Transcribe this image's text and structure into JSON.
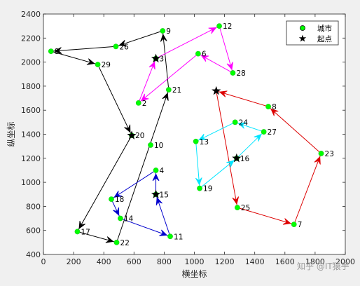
{
  "chart_data": {
    "type": "scatter",
    "xlabel": "横坐标",
    "ylabel": "纵坐标",
    "xlim": [
      0,
      2000
    ],
    "ylim": [
      400,
      2400
    ],
    "xticks": [
      0,
      200,
      400,
      600,
      800,
      1000,
      1200,
      1400,
      1600,
      1800,
      2000
    ],
    "yticks": [
      400,
      600,
      800,
      1000,
      1200,
      1400,
      1600,
      1800,
      2000,
      2200,
      2400
    ],
    "grid": false,
    "legend": {
      "placement": "top-right",
      "entries": [
        {
          "label": "城市",
          "marker": "circle",
          "color": "#00ff00"
        },
        {
          "label": "起点",
          "marker": "star",
          "color": "#000000"
        }
      ]
    },
    "points": [
      {
        "id": "2",
        "x": 630,
        "y": 1660
      },
      {
        "id": "3",
        "x": 745,
        "y": 2030
      },
      {
        "id": "4",
        "x": 745,
        "y": 1100
      },
      {
        "id": "6",
        "x": 1025,
        "y": 2070
      },
      {
        "id": "7",
        "x": 1660,
        "y": 650
      },
      {
        "id": "8",
        "x": 50,
        "y": 2090
      },
      {
        "id": "9",
        "x": 790,
        "y": 2260
      },
      {
        "id": "10",
        "x": 710,
        "y": 1310
      },
      {
        "id": "11",
        "x": 840,
        "y": 550
      },
      {
        "id": "12",
        "x": 1165,
        "y": 2300
      },
      {
        "id": "13",
        "x": 1010,
        "y": 1340
      },
      {
        "id": "14",
        "x": 510,
        "y": 700
      },
      {
        "id": "15",
        "x": 745,
        "y": 900
      },
      {
        "id": "16",
        "x": 1280,
        "y": 1200
      },
      {
        "id": "17",
        "x": 225,
        "y": 590
      },
      {
        "id": "18",
        "x": 450,
        "y": 860
      },
      {
        "id": "19",
        "x": 1035,
        "y": 950
      },
      {
        "id": "20",
        "x": 585,
        "y": 1390
      },
      {
        "id": "21",
        "x": 830,
        "y": 1770
      },
      {
        "id": "22",
        "x": 485,
        "y": 500
      },
      {
        "id": "23",
        "x": 1840,
        "y": 1240
      },
      {
        "id": "24",
        "x": 1270,
        "y": 1500
      },
      {
        "id": "25",
        "x": 1285,
        "y": 790
      },
      {
        "id": "26",
        "x": 480,
        "y": 2130
      },
      {
        "id": "27",
        "x": 1460,
        "y": 1420
      },
      {
        "id": "28",
        "x": 1255,
        "y": 1910
      },
      {
        "id": "29",
        "x": 360,
        "y": 1980
      },
      {
        "id": "8",
        "x": 1490,
        "y": 1630
      }
    ],
    "start_points": [
      {
        "x": 745,
        "y": 2030
      },
      {
        "x": 585,
        "y": 1390
      },
      {
        "x": 745,
        "y": 900
      },
      {
        "x": 1145,
        "y": 1760
      },
      {
        "x": 1280,
        "y": 1200
      }
    ],
    "routes": [
      {
        "color": "#000000",
        "path": [
          [
            585,
            1390
          ],
          [
            225,
            590
          ],
          [
            485,
            500
          ],
          [
            830,
            1770
          ],
          [
            790,
            2260
          ],
          [
            480,
            2130
          ],
          [
            50,
            2090
          ],
          [
            360,
            1980
          ],
          [
            585,
            1390
          ]
        ]
      },
      {
        "color": "#ff00ff",
        "path": [
          [
            745,
            2030
          ],
          [
            1165,
            2300
          ],
          [
            1255,
            1910
          ],
          [
            1025,
            2070
          ],
          [
            630,
            1660
          ],
          [
            745,
            2030
          ]
        ]
      },
      {
        "color": "#0000cd",
        "path": [
          [
            745,
            900
          ],
          [
            745,
            1100
          ],
          [
            450,
            860
          ],
          [
            510,
            700
          ],
          [
            840,
            550
          ],
          [
            745,
            900
          ]
        ]
      },
      {
        "color": "#dd0000",
        "path": [
          [
            1145,
            1760
          ],
          [
            1285,
            790
          ],
          [
            1660,
            650
          ],
          [
            1840,
            1240
          ],
          [
            1490,
            1630
          ],
          [
            1145,
            1760
          ]
        ]
      },
      {
        "color": "#00e5ff",
        "path": [
          [
            1280,
            1200
          ],
          [
            1460,
            1420
          ],
          [
            1270,
            1500
          ],
          [
            1010,
            1340
          ],
          [
            1035,
            950
          ],
          [
            1280,
            1200
          ]
        ]
      }
    ]
  },
  "watermark": "知乎 @IT猿手"
}
